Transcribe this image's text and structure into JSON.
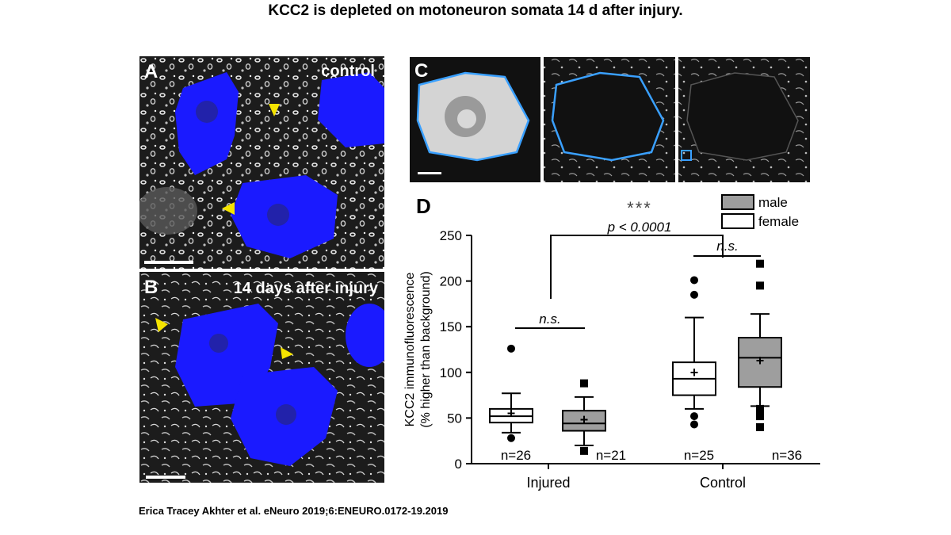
{
  "title": "KCC2 is depleted on motoneuron somata 14 d after injury.",
  "citation": "Erica Tracey Akhter et al. eNeuro 2019;6:ENEURO.0172-19.2019",
  "panels": {
    "a": {
      "label": "A",
      "caption": "control"
    },
    "b": {
      "label": "B",
      "caption": "14 days after injury"
    },
    "c": {
      "label": "C"
    },
    "d": {
      "label": "D"
    }
  },
  "colors": {
    "neuron_blue": "#1a1aff",
    "outline_blue": "#3aa0ff",
    "arrow_yellow": "#f5e400",
    "male_fill": "#9e9e9e",
    "female_fill": "#ffffff"
  },
  "chart_data": {
    "type": "box",
    "ylabel_line1": "KCC2 immunofluorescence",
    "ylabel_line2": "(% higher than background)",
    "ylim": [
      0,
      250
    ],
    "yticks": [
      "0",
      "50",
      "100",
      "150",
      "200",
      "250"
    ],
    "groups": [
      "Injured",
      "Control"
    ],
    "legend": [
      {
        "label": "male",
        "color": "#9e9e9e"
      },
      {
        "label": "female",
        "color": "#ffffff"
      }
    ],
    "boxes": [
      {
        "group": "Injured",
        "series": "female",
        "n_label": "n=26",
        "whisker_low": 34,
        "q1": 45,
        "median": 52,
        "q3": 60,
        "whisker_high": 77,
        "mean": 55,
        "outliers": [
          126,
          28
        ]
      },
      {
        "group": "Injured",
        "series": "male",
        "n_label": "n=21",
        "whisker_low": 20,
        "q1": 36,
        "median": 44,
        "q3": 58,
        "whisker_high": 73,
        "mean": 48,
        "outliers": [
          88,
          14
        ]
      },
      {
        "group": "Control",
        "series": "female",
        "n_label": "n=25",
        "whisker_low": 60,
        "q1": 75,
        "median": 93,
        "q3": 111,
        "whisker_high": 160,
        "mean": 100,
        "outliers": [
          201,
          185,
          52,
          43
        ]
      },
      {
        "group": "Control",
        "series": "male",
        "n_label": "n=36",
        "whisker_low": 63,
        "q1": 84,
        "median": 116,
        "q3": 138,
        "whisker_high": 164,
        "mean": 113,
        "outliers": [
          219,
          195,
          60,
          52,
          40
        ]
      }
    ],
    "annotations": {
      "stars": "***",
      "pvalue": "p < 0.0001",
      "ns_injured": "n.s.",
      "ns_control": "n.s."
    }
  }
}
